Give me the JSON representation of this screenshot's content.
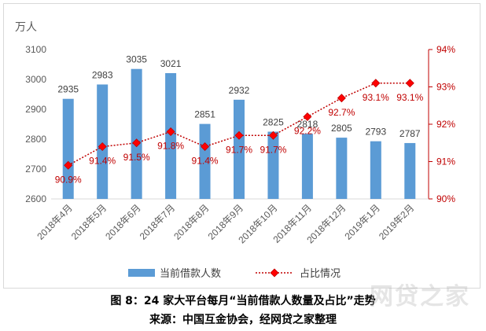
{
  "chart_data": {
    "type": "bar+line",
    "categories": [
      "2018年4月",
      "2018年5月",
      "2018年6月",
      "2018年7月",
      "2018年8月",
      "2018年9月",
      "2018年10月",
      "2018年11月",
      "2018年12月",
      "2019年1月",
      "2019年2月"
    ],
    "unit_label": "万人",
    "series": [
      {
        "name": "当前借款人数",
        "type": "bar",
        "axis": "left",
        "values": [
          2935,
          2983,
          3035,
          3021,
          2851,
          2932,
          2825,
          2818,
          2805,
          2793,
          2787
        ],
        "labels": [
          "2935",
          "2983",
          "3035",
          "3021",
          "2851",
          "2932",
          "2825",
          "2818",
          "2805",
          "2793",
          "2787"
        ]
      },
      {
        "name": "占比情况",
        "type": "line",
        "axis": "right",
        "values": [
          90.9,
          91.4,
          91.5,
          91.8,
          91.4,
          91.7,
          91.7,
          92.2,
          92.7,
          93.1,
          93.1
        ],
        "labels": [
          "90.9%",
          "91.4%",
          "91.5%",
          "91.8%",
          "91.4%",
          "91.7%",
          "91.7%",
          "92.2%",
          "92.7%",
          "93.1%",
          "93.1%"
        ]
      }
    ],
    "y_left": {
      "min": 2600,
      "max": 3100,
      "ticks": [
        "2600",
        "2700",
        "2800",
        "2900",
        "3000",
        "3100"
      ],
      "tick_values": [
        2600,
        2700,
        2800,
        2900,
        3000,
        3100
      ]
    },
    "y_right": {
      "min": 90,
      "max": 94,
      "ticks": [
        "90%",
        "91%",
        "92%",
        "93%",
        "94%"
      ],
      "tick_values": [
        90,
        91,
        92,
        93,
        94
      ]
    },
    "colors": {
      "bar": "#5b9bd5",
      "line": "#c00000",
      "marker_fill": "#ff0000",
      "axis_right": "#c00000"
    },
    "grid": false,
    "legend_position": "bottom"
  },
  "caption": {
    "line1": "图 8：24 家大平台每月“当前借款人数量及占比”走势",
    "line2": "来源：中国互金协会，经网贷之家整理"
  },
  "watermark": "网贷之家"
}
